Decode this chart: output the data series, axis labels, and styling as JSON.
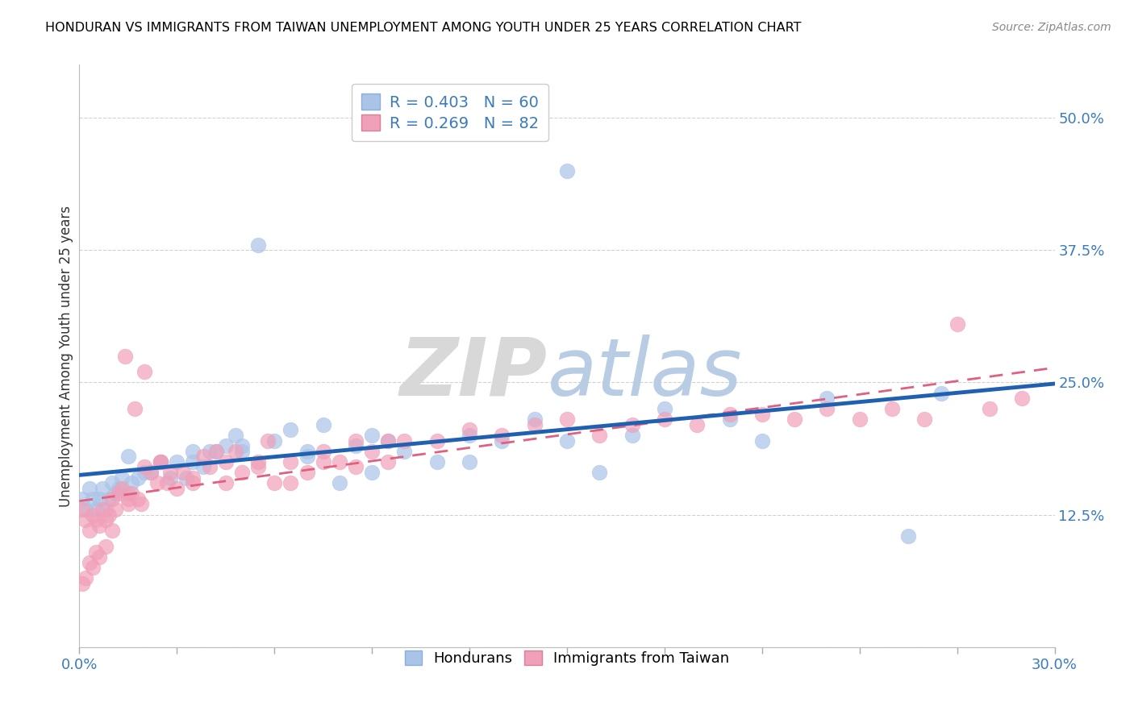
{
  "title": "HONDURAN VS IMMIGRANTS FROM TAIWAN UNEMPLOYMENT AMONG YOUTH UNDER 25 YEARS CORRELATION CHART",
  "source": "Source: ZipAtlas.com",
  "ylabel": "Unemployment Among Youth under 25 years",
  "xlim": [
    0.0,
    0.3
  ],
  "ylim": [
    0.0,
    0.55
  ],
  "xticks": [
    0.0,
    0.03,
    0.06,
    0.09,
    0.12,
    0.15,
    0.18,
    0.21,
    0.24,
    0.27,
    0.3
  ],
  "ytick_positions": [
    0.0,
    0.125,
    0.25,
    0.375,
    0.5
  ],
  "ytick_labels": [
    "",
    "12.5%",
    "25.0%",
    "37.5%",
    "50.0%"
  ],
  "blue_R": 0.403,
  "blue_N": 60,
  "pink_R": 0.269,
  "pink_N": 82,
  "blue_color": "#aac4e8",
  "pink_color": "#f0a0b8",
  "blue_line_color": "#2060b0",
  "pink_line_color": "#e06080",
  "blue_scatter_x": [
    0.001,
    0.002,
    0.003,
    0.004,
    0.005,
    0.006,
    0.007,
    0.008,
    0.009,
    0.01,
    0.011,
    0.012,
    0.013,
    0.015,
    0.016,
    0.018,
    0.02,
    0.022,
    0.025,
    0.028,
    0.03,
    0.033,
    0.035,
    0.038,
    0.04,
    0.042,
    0.045,
    0.048,
    0.05,
    0.055,
    0.06,
    0.065,
    0.07,
    0.075,
    0.08,
    0.085,
    0.09,
    0.095,
    0.1,
    0.11,
    0.12,
    0.13,
    0.14,
    0.15,
    0.16,
    0.17,
    0.18,
    0.2,
    0.21,
    0.23,
    0.255,
    0.265,
    0.15,
    0.12,
    0.09,
    0.07,
    0.05,
    0.035,
    0.025,
    0.015
  ],
  "blue_scatter_y": [
    0.14,
    0.13,
    0.15,
    0.14,
    0.13,
    0.14,
    0.15,
    0.13,
    0.14,
    0.155,
    0.145,
    0.15,
    0.16,
    0.145,
    0.155,
    0.16,
    0.165,
    0.165,
    0.175,
    0.16,
    0.175,
    0.16,
    0.185,
    0.17,
    0.185,
    0.185,
    0.19,
    0.2,
    0.19,
    0.38,
    0.195,
    0.205,
    0.18,
    0.21,
    0.155,
    0.19,
    0.165,
    0.195,
    0.185,
    0.175,
    0.175,
    0.195,
    0.215,
    0.45,
    0.165,
    0.2,
    0.225,
    0.215,
    0.195,
    0.235,
    0.105,
    0.24,
    0.195,
    0.2,
    0.2,
    0.185,
    0.185,
    0.175,
    0.175,
    0.18
  ],
  "pink_scatter_x": [
    0.001,
    0.002,
    0.003,
    0.004,
    0.005,
    0.006,
    0.007,
    0.008,
    0.009,
    0.01,
    0.011,
    0.012,
    0.013,
    0.014,
    0.015,
    0.016,
    0.017,
    0.018,
    0.019,
    0.02,
    0.022,
    0.024,
    0.025,
    0.027,
    0.028,
    0.03,
    0.032,
    0.035,
    0.038,
    0.04,
    0.042,
    0.045,
    0.048,
    0.05,
    0.055,
    0.058,
    0.06,
    0.065,
    0.07,
    0.075,
    0.08,
    0.085,
    0.09,
    0.095,
    0.1,
    0.11,
    0.12,
    0.13,
    0.14,
    0.15,
    0.16,
    0.17,
    0.18,
    0.19,
    0.2,
    0.21,
    0.22,
    0.23,
    0.24,
    0.25,
    0.26,
    0.27,
    0.28,
    0.29,
    0.008,
    0.006,
    0.005,
    0.004,
    0.003,
    0.002,
    0.001,
    0.02,
    0.015,
    0.01,
    0.025,
    0.035,
    0.045,
    0.055,
    0.065,
    0.075,
    0.085,
    0.095
  ],
  "pink_scatter_y": [
    0.13,
    0.12,
    0.11,
    0.125,
    0.12,
    0.115,
    0.13,
    0.12,
    0.125,
    0.14,
    0.13,
    0.145,
    0.15,
    0.275,
    0.14,
    0.145,
    0.225,
    0.14,
    0.135,
    0.17,
    0.165,
    0.155,
    0.175,
    0.155,
    0.165,
    0.15,
    0.165,
    0.155,
    0.18,
    0.17,
    0.185,
    0.175,
    0.185,
    0.165,
    0.175,
    0.195,
    0.155,
    0.175,
    0.165,
    0.185,
    0.175,
    0.195,
    0.185,
    0.195,
    0.195,
    0.195,
    0.205,
    0.2,
    0.21,
    0.215,
    0.2,
    0.21,
    0.215,
    0.21,
    0.22,
    0.22,
    0.215,
    0.225,
    0.215,
    0.225,
    0.215,
    0.305,
    0.225,
    0.235,
    0.095,
    0.085,
    0.09,
    0.075,
    0.08,
    0.065,
    0.06,
    0.26,
    0.135,
    0.11,
    0.175,
    0.16,
    0.155,
    0.17,
    0.155,
    0.175,
    0.17,
    0.175
  ]
}
